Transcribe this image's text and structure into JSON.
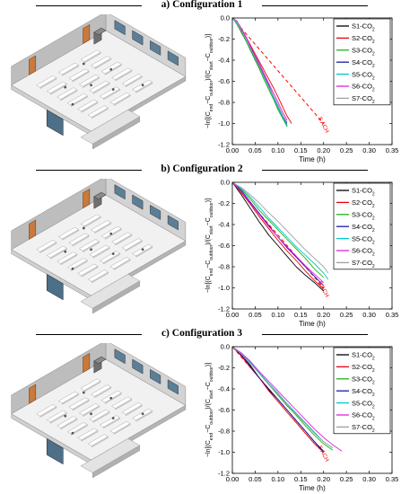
{
  "chart_data": [
    {
      "type": "line",
      "title": "a) Configuration 1",
      "xlabel": "Time (h)",
      "ylabel": "−ln[(C_end−C_outdoor)/(C_start−C_outdoor)]",
      "xlim": [
        0,
        0.35
      ],
      "ylim": [
        -1.2,
        0
      ],
      "xticks": [
        "0.00",
        "0.05",
        "0.10",
        "0.15",
        "0.20",
        "0.25",
        "0.30",
        "0.35"
      ],
      "yticks": [
        "0.0",
        "-0.2",
        "-0.4",
        "-0.6",
        "-0.8",
        "-1.0",
        "-1.2"
      ],
      "annotation": "5 ACH",
      "reference": {
        "x": [
          0,
          0.2
        ],
        "y": [
          0,
          -1.0
        ]
      },
      "legend_position": "top-right",
      "series": [
        {
          "name": "S1-CO2",
          "color": "#000000",
          "x": [
            0,
            0.01,
            0.02,
            0.03,
            0.04,
            0.05,
            0.06,
            0.07,
            0.08,
            0.09,
            0.1,
            0.11,
            0.12
          ],
          "y": [
            0,
            -0.03,
            -0.13,
            -0.21,
            -0.3,
            -0.39,
            -0.48,
            -0.56,
            -0.66,
            -0.75,
            -0.85,
            -0.94,
            -1.02
          ]
        },
        {
          "name": "S2-CO2",
          "color": "#e8000b",
          "x": [
            0,
            0.01,
            0.02,
            0.03,
            0.04,
            0.05,
            0.06,
            0.07,
            0.08,
            0.09,
            0.1,
            0.11,
            0.12,
            0.13
          ],
          "y": [
            0,
            -0.05,
            -0.12,
            -0.18,
            -0.26,
            -0.34,
            -0.42,
            -0.5,
            -0.58,
            -0.66,
            -0.75,
            -0.84,
            -0.93,
            -1.0
          ]
        },
        {
          "name": "S3-CO2",
          "color": "#1db31d",
          "x": [
            0,
            0.01,
            0.02,
            0.03,
            0.04,
            0.05,
            0.06,
            0.07,
            0.08,
            0.09,
            0.1,
            0.11,
            0.12
          ],
          "y": [
            0,
            -0.06,
            -0.14,
            -0.22,
            -0.31,
            -0.4,
            -0.49,
            -0.59,
            -0.68,
            -0.77,
            -0.87,
            -0.95,
            -1.03
          ]
        },
        {
          "name": "S4-CO2",
          "color": "#1a1aa8",
          "x": [
            0,
            0.01,
            0.02,
            0.03,
            0.04,
            0.05,
            0.06,
            0.07,
            0.08,
            0.09,
            0.1,
            0.11,
            0.12
          ],
          "y": [
            0,
            -0.04,
            -0.11,
            -0.2,
            -0.28,
            -0.37,
            -0.46,
            -0.55,
            -0.64,
            -0.74,
            -0.83,
            -0.92,
            -1.0
          ]
        },
        {
          "name": "S5-CO2",
          "color": "#00c8c8",
          "x": [
            0,
            0.01,
            0.02,
            0.03,
            0.04,
            0.05,
            0.06,
            0.07,
            0.08,
            0.09,
            0.1,
            0.11,
            0.12
          ],
          "y": [
            0,
            -0.05,
            -0.12,
            -0.21,
            -0.29,
            -0.38,
            -0.47,
            -0.57,
            -0.66,
            -0.76,
            -0.85,
            -0.94,
            -1.02
          ]
        },
        {
          "name": "S6-CO2",
          "color": "#e020e0",
          "x": [
            0,
            0.01,
            0.02,
            0.03,
            0.04,
            0.05,
            0.06,
            0.07,
            0.08,
            0.09,
            0.1,
            0.11,
            0.12
          ],
          "y": [
            0,
            -0.03,
            -0.1,
            -0.18,
            -0.27,
            -0.35,
            -0.44,
            -0.53,
            -0.62,
            -0.71,
            -0.8,
            -0.89,
            -0.97
          ]
        },
        {
          "name": "S7-CO2",
          "color": "#a0a0a0",
          "x": [
            0,
            0.01,
            0.02,
            0.03,
            0.04,
            0.05,
            0.06,
            0.07,
            0.08,
            0.09,
            0.1,
            0.11,
            0.12
          ],
          "y": [
            0,
            -0.04,
            -0.12,
            -0.2,
            -0.29,
            -0.38,
            -0.47,
            -0.56,
            -0.65,
            -0.74,
            -0.83,
            -0.92,
            -0.99
          ]
        }
      ]
    },
    {
      "type": "line",
      "title": "b) Configuration 2",
      "xlabel": "Time (h)",
      "ylabel": "−ln[(C_end−C_outdoor)/(C_start−C_outdoor)]",
      "xlim": [
        0,
        0.35
      ],
      "ylim": [
        -1.2,
        0
      ],
      "xticks": [
        "0.00",
        "0.05",
        "0.10",
        "0.15",
        "0.20",
        "0.25",
        "0.30",
        "0.35"
      ],
      "yticks": [
        "0.0",
        "-0.2",
        "-0.4",
        "-0.6",
        "-0.8",
        "-1.0",
        "-1.2"
      ],
      "annotation": "5 ACH",
      "reference": {
        "x": [
          0,
          0.2
        ],
        "y": [
          0,
          -1.0
        ]
      },
      "legend_position": "top-right",
      "series": [
        {
          "name": "S1-CO2",
          "color": "#000000",
          "x": [
            0,
            0.02,
            0.04,
            0.06,
            0.08,
            0.1,
            0.12,
            0.14,
            0.16,
            0.18,
            0.2
          ],
          "y": [
            0,
            -0.12,
            -0.25,
            -0.38,
            -0.5,
            -0.6,
            -0.7,
            -0.8,
            -0.88,
            -0.95,
            -1.03
          ]
        },
        {
          "name": "S2-CO2",
          "color": "#e8000b",
          "x": [
            0,
            0.02,
            0.04,
            0.06,
            0.08,
            0.1,
            0.12,
            0.14,
            0.16,
            0.18,
            0.2
          ],
          "y": [
            0,
            -0.1,
            -0.21,
            -0.33,
            -0.44,
            -0.55,
            -0.65,
            -0.74,
            -0.84,
            -0.93,
            -1.01
          ]
        },
        {
          "name": "S3-CO2",
          "color": "#1db31d",
          "x": [
            0,
            0.02,
            0.04,
            0.06,
            0.08,
            0.1,
            0.12,
            0.14,
            0.16,
            0.18,
            0.2
          ],
          "y": [
            0,
            -0.07,
            -0.16,
            -0.27,
            -0.36,
            -0.45,
            -0.54,
            -0.63,
            -0.72,
            -0.82,
            -0.9
          ]
        },
        {
          "name": "S4-CO2",
          "color": "#1a1aa8",
          "x": [
            0,
            0.02,
            0.04,
            0.06,
            0.08,
            0.1,
            0.12,
            0.14,
            0.16,
            0.18,
            0.2
          ],
          "y": [
            0,
            -0.08,
            -0.19,
            -0.3,
            -0.41,
            -0.52,
            -0.62,
            -0.71,
            -0.8,
            -0.89,
            -0.98
          ]
        },
        {
          "name": "S5-CO2",
          "color": "#00c8c8",
          "x": [
            0,
            0.02,
            0.04,
            0.06,
            0.08,
            0.1,
            0.12,
            0.14,
            0.16,
            0.18,
            0.2,
            0.21
          ],
          "y": [
            0,
            -0.06,
            -0.14,
            -0.24,
            -0.34,
            -0.43,
            -0.52,
            -0.61,
            -0.69,
            -0.77,
            -0.86,
            -0.92
          ]
        },
        {
          "name": "S6-CO2",
          "color": "#e020e0",
          "x": [
            0,
            0.02,
            0.04,
            0.06,
            0.08,
            0.1,
            0.12,
            0.14,
            0.16,
            0.18,
            0.2
          ],
          "y": [
            0,
            -0.09,
            -0.2,
            -0.31,
            -0.42,
            -0.52,
            -0.61,
            -0.7,
            -0.79,
            -0.87,
            -0.95
          ]
        },
        {
          "name": "S7-CO2",
          "color": "#a0a0a0",
          "x": [
            0,
            0.02,
            0.04,
            0.06,
            0.08,
            0.1,
            0.12,
            0.14,
            0.16,
            0.18,
            0.2,
            0.21
          ],
          "y": [
            0,
            -0.05,
            -0.12,
            -0.2,
            -0.29,
            -0.37,
            -0.46,
            -0.55,
            -0.64,
            -0.72,
            -0.8,
            -0.86
          ]
        }
      ]
    },
    {
      "type": "line",
      "title": "c) Configuration 3",
      "xlabel": "Time (h)",
      "ylabel": "−ln[(C_end−C_outdoor)/(C_start−C_outdoor)]",
      "xlim": [
        0,
        0.35
      ],
      "ylim": [
        -1.2,
        0
      ],
      "xticks": [
        "0.00",
        "0.05",
        "0.10",
        "0.15",
        "0.20",
        "0.25",
        "0.30",
        "0.35"
      ],
      "yticks": [
        "0.0",
        "-0.2",
        "-0.4",
        "-0.6",
        "-0.8",
        "-1.0",
        "-1.2"
      ],
      "annotation": "5 ACH",
      "reference": {
        "x": [
          0,
          0.2
        ],
        "y": [
          0,
          -1.0
        ]
      },
      "legend_position": "top-right",
      "series": [
        {
          "name": "S1-CO2",
          "color": "#000000",
          "x": [
            0,
            0.02,
            0.04,
            0.06,
            0.08,
            0.1,
            0.12,
            0.14,
            0.16,
            0.18,
            0.2
          ],
          "y": [
            0,
            -0.08,
            -0.18,
            -0.3,
            -0.41,
            -0.5,
            -0.6,
            -0.7,
            -0.8,
            -0.9,
            -1.0
          ]
        },
        {
          "name": "S2-CO2",
          "color": "#e8000b",
          "x": [
            0,
            0.02,
            0.04,
            0.06,
            0.08,
            0.1,
            0.12,
            0.14,
            0.16,
            0.18,
            0.2
          ],
          "y": [
            0,
            -0.09,
            -0.2,
            -0.3,
            -0.42,
            -0.52,
            -0.62,
            -0.72,
            -0.82,
            -0.92,
            -1.0
          ]
        },
        {
          "name": "S3-CO2",
          "color": "#1db31d",
          "x": [
            0,
            0.02,
            0.04,
            0.06,
            0.08,
            0.1,
            0.12,
            0.14,
            0.16,
            0.18,
            0.2,
            0.22
          ],
          "y": [
            0,
            -0.07,
            -0.16,
            -0.26,
            -0.36,
            -0.46,
            -0.56,
            -0.65,
            -0.75,
            -0.84,
            -0.92,
            -0.98
          ]
        },
        {
          "name": "S4-CO2",
          "color": "#1a1aa8",
          "x": [
            0,
            0.02,
            0.04,
            0.06,
            0.08,
            0.1,
            0.12,
            0.14,
            0.16,
            0.18,
            0.2
          ],
          "y": [
            0,
            -0.08,
            -0.19,
            -0.3,
            -0.4,
            -0.5,
            -0.6,
            -0.7,
            -0.8,
            -0.9,
            -0.99
          ]
        },
        {
          "name": "S5-CO2",
          "color": "#00c8c8",
          "x": [
            0,
            0.02,
            0.04,
            0.06,
            0.08,
            0.1,
            0.12,
            0.14,
            0.16,
            0.18,
            0.2,
            0.22
          ],
          "y": [
            0,
            -0.06,
            -0.15,
            -0.25,
            -0.35,
            -0.44,
            -0.54,
            -0.63,
            -0.72,
            -0.81,
            -0.9,
            -0.96
          ]
        },
        {
          "name": "S6-CO2",
          "color": "#e020e0",
          "x": [
            0,
            0.02,
            0.04,
            0.06,
            0.08,
            0.1,
            0.12,
            0.14,
            0.16,
            0.18,
            0.2,
            0.22,
            0.24
          ],
          "y": [
            0,
            -0.06,
            -0.14,
            -0.24,
            -0.33,
            -0.42,
            -0.51,
            -0.6,
            -0.69,
            -0.78,
            -0.86,
            -0.93,
            -0.99
          ]
        },
        {
          "name": "S7-CO2",
          "color": "#a0a0a0",
          "x": [
            0,
            0.02,
            0.04,
            0.06,
            0.08,
            0.1,
            0.12,
            0.14,
            0.16,
            0.18,
            0.2,
            0.22
          ],
          "y": [
            0,
            -0.07,
            -0.16,
            -0.26,
            -0.36,
            -0.45,
            -0.55,
            -0.64,
            -0.73,
            -0.82,
            -0.9,
            -0.96
          ]
        }
      ]
    }
  ]
}
